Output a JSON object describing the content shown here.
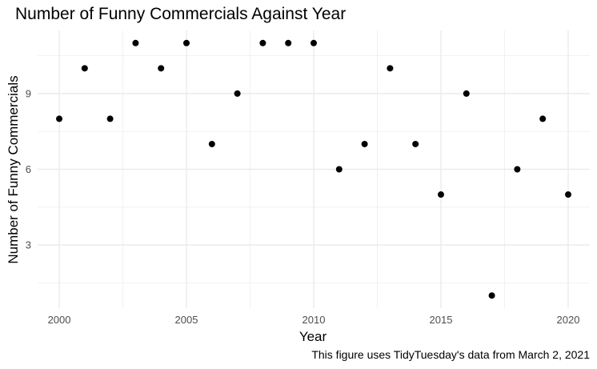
{
  "chart_data": {
    "type": "scatter",
    "title": "Number of Funny Commercials Against Year",
    "xlabel": "Year",
    "ylabel": "Number of Funny Commercials",
    "caption": "This figure uses TidyTuesday's data from March 2, 2021",
    "xlim": [
      1999.15,
      2020.85
    ],
    "ylim": [
      0.5,
      11.5
    ],
    "x_ticks": [
      2000,
      2005,
      2010,
      2015,
      2020
    ],
    "x_tick_labels": [
      "2000",
      "2005",
      "2010",
      "2015",
      "2020"
    ],
    "y_ticks": [
      3,
      6,
      9
    ],
    "y_tick_labels": [
      "3",
      "6",
      "9"
    ],
    "grid": true,
    "legend": "none",
    "point_color": "#000000",
    "grid_color": "#ebebeb",
    "x": [
      2000,
      2001,
      2002,
      2003,
      2004,
      2005,
      2006,
      2007,
      2008,
      2009,
      2010,
      2011,
      2012,
      2013,
      2014,
      2015,
      2016,
      2017,
      2018,
      2019,
      2020
    ],
    "y": [
      8,
      10,
      8,
      11,
      10,
      11,
      7,
      9,
      11,
      11,
      11,
      6,
      7,
      10,
      7,
      5,
      9,
      1,
      6,
      8,
      5
    ]
  }
}
